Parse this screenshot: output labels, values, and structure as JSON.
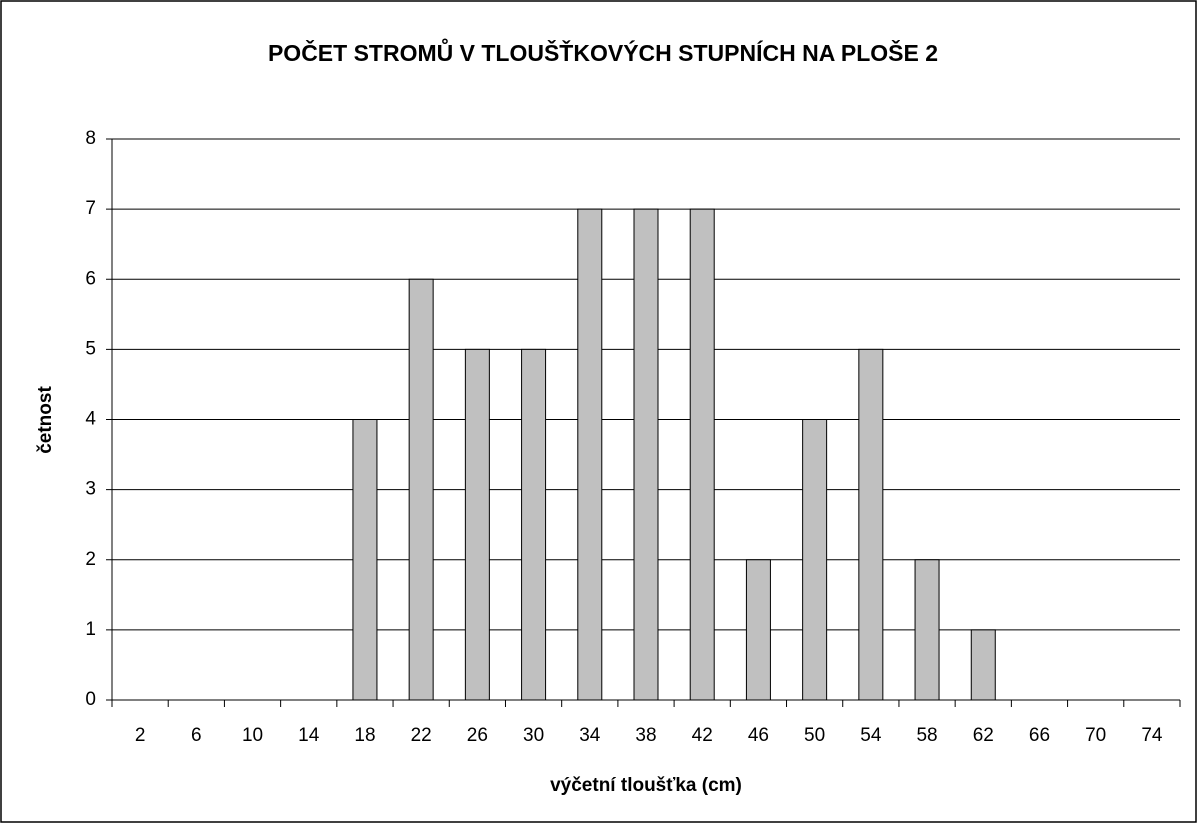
{
  "chart_data": {
    "type": "bar",
    "title": "POČET STROMŮ V TLOUŠŤKOVÝCH STUPNÍCH NA PLOŠE 2",
    "x_label": "výčetní tloušťka (cm)",
    "y_label": "četnost",
    "categories": [
      "2",
      "6",
      "10",
      "14",
      "18",
      "22",
      "26",
      "30",
      "34",
      "38",
      "42",
      "46",
      "50",
      "54",
      "58",
      "62",
      "66",
      "70",
      "74"
    ],
    "values": [
      0,
      0,
      0,
      0,
      4,
      6,
      5,
      5,
      7,
      7,
      7,
      2,
      4,
      5,
      2,
      1,
      0,
      0,
      0
    ],
    "color": "#c0c0c0",
    "ylim": [
      0,
      8
    ],
    "yticks": [
      0,
      1,
      2,
      3,
      4,
      5,
      6,
      7,
      8
    ],
    "grid": true
  }
}
